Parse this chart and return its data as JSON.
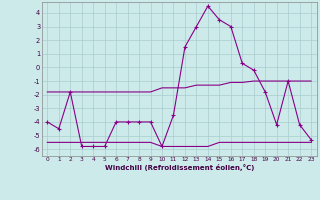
{
  "xlabel": "Windchill (Refroidissement éolien,°C)",
  "x": [
    0,
    1,
    2,
    3,
    4,
    5,
    6,
    7,
    8,
    9,
    10,
    11,
    12,
    13,
    14,
    15,
    16,
    17,
    18,
    19,
    20,
    21,
    22,
    23
  ],
  "line1": [
    -4.0,
    -4.5,
    -1.8,
    -5.8,
    -5.8,
    -5.8,
    -4.0,
    -4.0,
    -4.0,
    -4.0,
    -5.8,
    -3.5,
    1.5,
    3.0,
    4.5,
    3.5,
    3.0,
    0.3,
    -0.2,
    -1.8,
    -4.2,
    -1.0,
    -4.2,
    -5.3
  ],
  "line2": [
    -1.8,
    -1.8,
    -1.8,
    -1.8,
    -1.8,
    -1.8,
    -1.8,
    -1.8,
    -1.8,
    -1.8,
    -1.5,
    -1.5,
    -1.5,
    -1.3,
    -1.3,
    -1.3,
    -1.1,
    -1.1,
    -1.0,
    -1.0,
    -1.0,
    -1.0,
    -1.0,
    -1.0
  ],
  "line3": [
    -5.5,
    -5.5,
    -5.5,
    -5.5,
    -5.5,
    -5.5,
    -5.5,
    -5.5,
    -5.5,
    -5.5,
    -5.8,
    -5.8,
    -5.8,
    -5.8,
    -5.8,
    -5.5,
    -5.5,
    -5.5,
    -5.5,
    -5.5,
    -5.5,
    -5.5,
    -5.5,
    -5.5
  ],
  "line_color": "#880088",
  "bg_color": "#cceaea",
  "grid_color": "#aacccc",
  "ylim": [
    -6.5,
    4.8
  ],
  "yticks": [
    -6,
    -5,
    -4,
    -3,
    -2,
    -1,
    0,
    1,
    2,
    3,
    4
  ],
  "xticks": [
    0,
    1,
    2,
    3,
    4,
    5,
    6,
    7,
    8,
    9,
    10,
    11,
    12,
    13,
    14,
    15,
    16,
    17,
    18,
    19,
    20,
    21,
    22,
    23
  ]
}
